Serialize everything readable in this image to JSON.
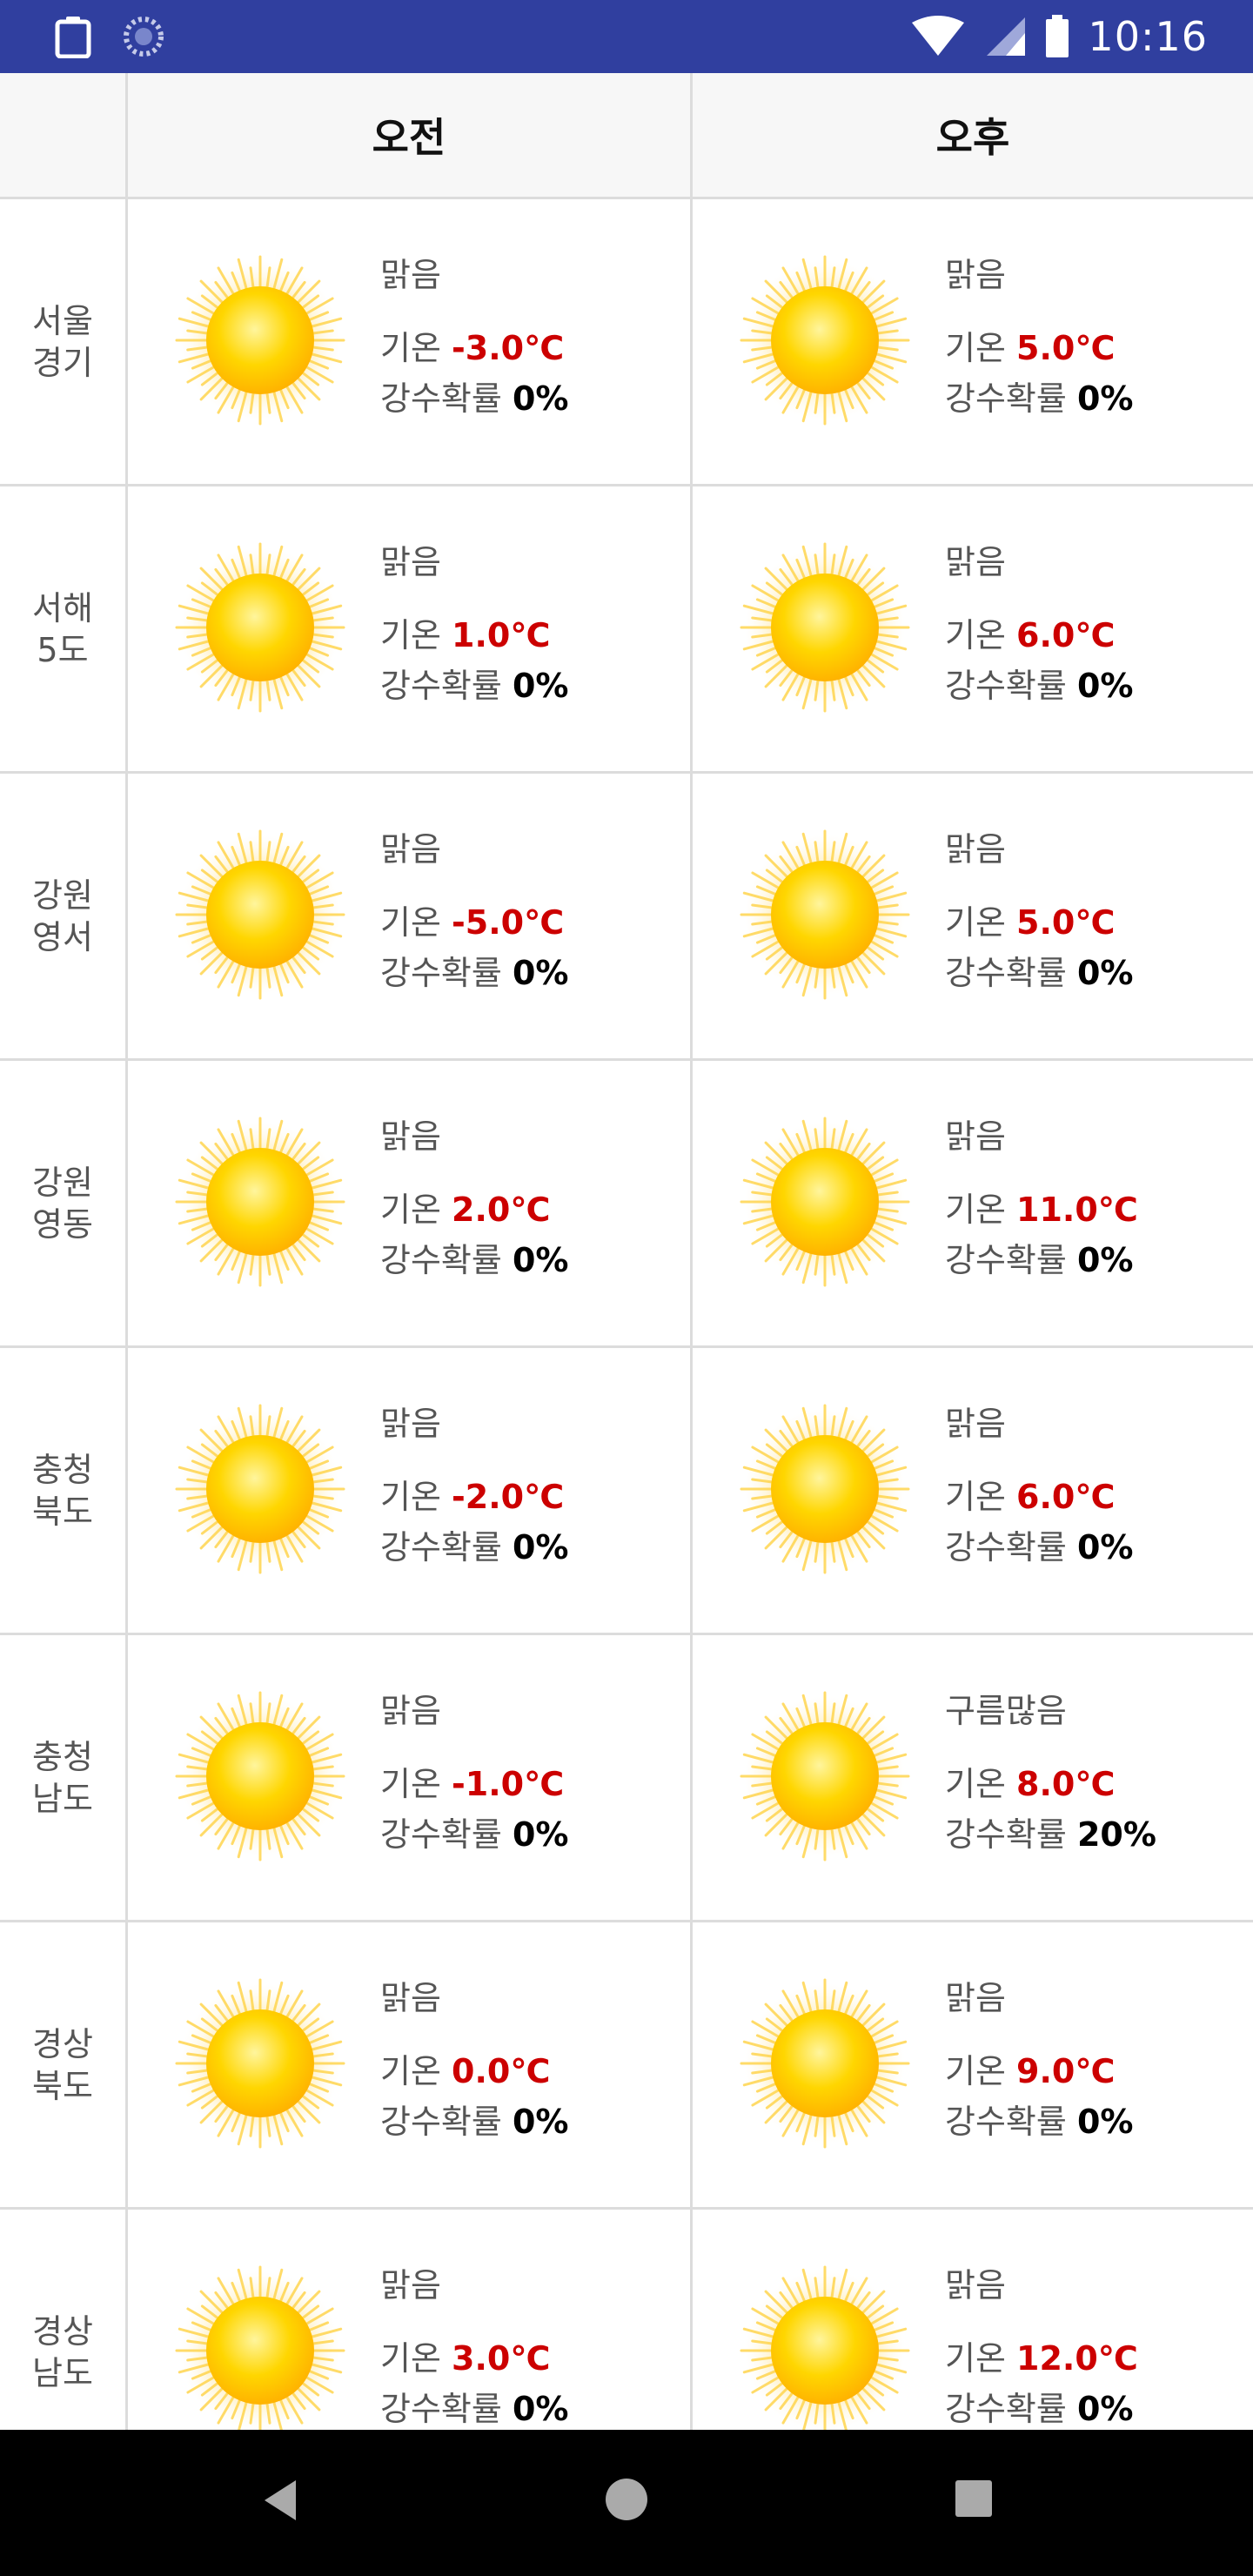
{
  "status_bar": {
    "time": "10:16"
  },
  "header": {
    "am_label": "오전",
    "pm_label": "오후"
  },
  "labels": {
    "temp": "기온",
    "pop": "강수확률"
  },
  "colors": {
    "status_bar": "#303f9f",
    "temperature": "#cc0000",
    "grid": "#dcdcdc"
  },
  "rows": [
    {
      "region": "서울\n경기",
      "am": {
        "icon": "sun-icon",
        "condition": "맑음",
        "temp": "-3.0℃",
        "pop": "0%"
      },
      "pm": {
        "icon": "sun-icon",
        "condition": "맑음",
        "temp": "5.0℃",
        "pop": "0%"
      }
    },
    {
      "region": "서해\n5도",
      "am": {
        "icon": "sun-icon",
        "condition": "맑음",
        "temp": "1.0℃",
        "pop": "0%"
      },
      "pm": {
        "icon": "sun-icon",
        "condition": "맑음",
        "temp": "6.0℃",
        "pop": "0%"
      }
    },
    {
      "region": "강원\n영서",
      "am": {
        "icon": "sun-icon",
        "condition": "맑음",
        "temp": "-5.0℃",
        "pop": "0%"
      },
      "pm": {
        "icon": "sun-icon",
        "condition": "맑음",
        "temp": "5.0℃",
        "pop": "0%"
      }
    },
    {
      "region": "강원\n영동",
      "am": {
        "icon": "sun-icon",
        "condition": "맑음",
        "temp": "2.0℃",
        "pop": "0%"
      },
      "pm": {
        "icon": "sun-icon",
        "condition": "맑음",
        "temp": "11.0℃",
        "pop": "0%"
      }
    },
    {
      "region": "충청\n북도",
      "am": {
        "icon": "sun-icon",
        "condition": "맑음",
        "temp": "-2.0℃",
        "pop": "0%"
      },
      "pm": {
        "icon": "sun-icon",
        "condition": "맑음",
        "temp": "6.0℃",
        "pop": "0%"
      }
    },
    {
      "region": "충청\n남도",
      "am": {
        "icon": "sun-icon",
        "condition": "맑음",
        "temp": "-1.0℃",
        "pop": "0%"
      },
      "pm": {
        "icon": "sun-icon",
        "condition": "구름많음",
        "temp": "8.0℃",
        "pop": "20%"
      }
    },
    {
      "region": "경상\n북도",
      "am": {
        "icon": "sun-icon",
        "condition": "맑음",
        "temp": "0.0℃",
        "pop": "0%"
      },
      "pm": {
        "icon": "sun-icon",
        "condition": "맑음",
        "temp": "9.0℃",
        "pop": "0%"
      }
    },
    {
      "region": "경상\n남도",
      "am": {
        "icon": "sun-icon",
        "condition": "맑음",
        "temp": "3.0℃",
        "pop": "0%"
      },
      "pm": {
        "icon": "sun-icon",
        "condition": "맑음",
        "temp": "12.0℃",
        "pop": "0%"
      }
    }
  ]
}
